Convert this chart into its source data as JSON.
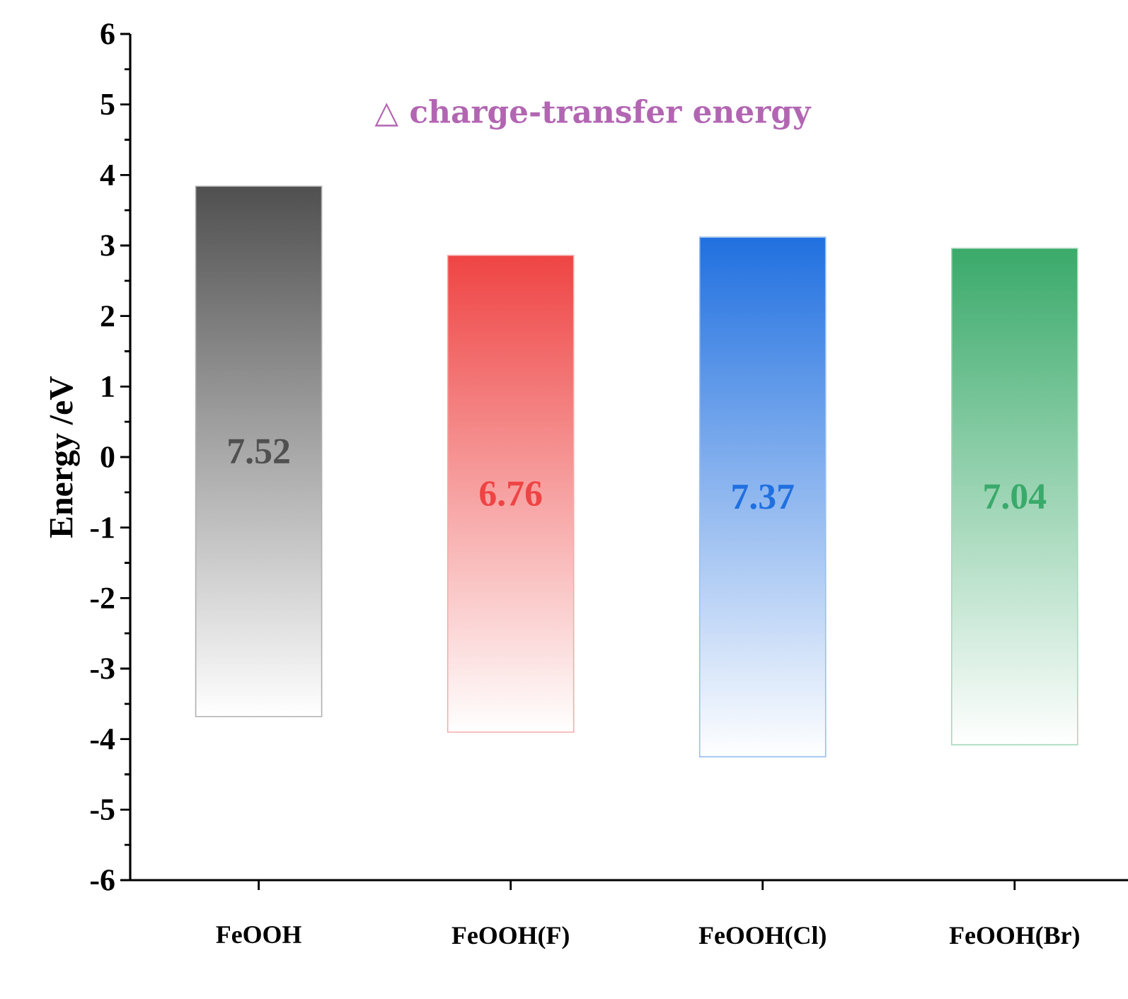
{
  "chart_data": {
    "type": "bar",
    "ylabel": "Energy /eV",
    "categories": [
      "FeOOH",
      "FeOOH(F)",
      "FeOOH(Cl)",
      "FeOOH(Br)"
    ],
    "base": [
      -3.68,
      -3.9,
      -4.25,
      -4.08
    ],
    "values": [
      7.52,
      6.76,
      7.37,
      7.04
    ],
    "value_labels": [
      "7.52",
      "6.76",
      "7.37",
      "7.04"
    ],
    "colors": [
      "#505050",
      "#ef4444",
      "#2070e0",
      "#3aaa6a"
    ],
    "ylim": [
      -6,
      6
    ],
    "yticks": [
      -6,
      -5,
      -4,
      -3,
      -2,
      -1,
      0,
      1,
      2,
      3,
      4,
      5,
      6
    ],
    "annotations": [
      "△ charge-transfer energy"
    ]
  }
}
